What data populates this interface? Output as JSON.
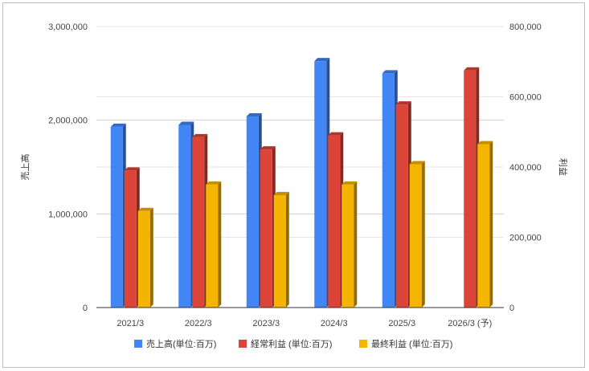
{
  "chart_data": {
    "type": "bar",
    "categories": [
      "2021/3",
      "2022/3",
      "2023/3",
      "2024/3",
      "2025/3",
      "2026/3 (予)"
    ],
    "series": [
      {
        "name": "売上高(単位:百万)",
        "axis": "left",
        "color": "#4285f4",
        "values": [
          1930000,
          1950000,
          2040000,
          2630000,
          2500000,
          null
        ]
      },
      {
        "name": "経常利益 (単位:百万)",
        "axis": "right",
        "color": "#db4437",
        "values": [
          390000,
          485000,
          450000,
          490000,
          578000,
          675000
        ]
      },
      {
        "name": "最終利益 (単位:百万)",
        "axis": "right",
        "color": "#f4b400",
        "values": [
          275000,
          350000,
          320000,
          350000,
          408000,
          465000
        ]
      }
    ],
    "ylabel_left": "売上高",
    "ylabel_right": "利益",
    "ylim_left": [
      0,
      3000000
    ],
    "ylim_right": [
      0,
      800000
    ],
    "yticks_left": [
      "0",
      "1,000,000",
      "2,000,000",
      "3,000,000"
    ],
    "yticks_right": [
      "0",
      "200,000",
      "400,000",
      "600,000",
      "800,000"
    ],
    "grid": true,
    "legend_position": "bottom",
    "bar_style": "3d"
  }
}
